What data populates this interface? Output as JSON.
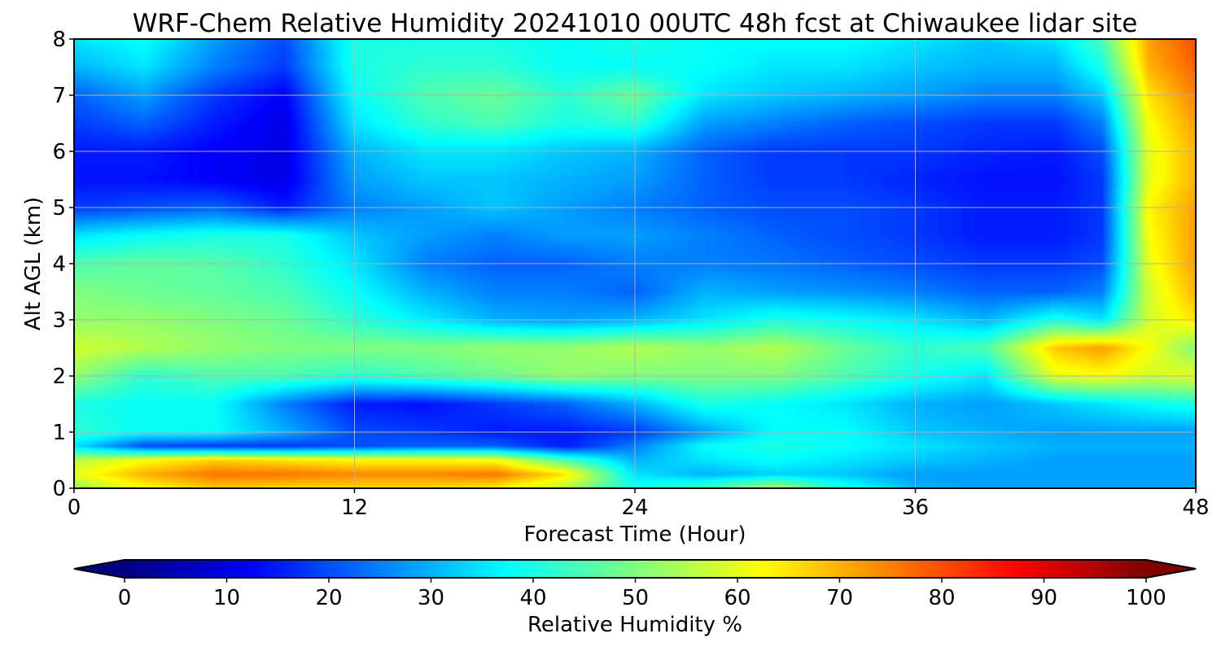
{
  "chart_data": {
    "type": "heatmap",
    "title": "WRF-Chem Relative Humidity 20241010 00UTC 48h fcst at Chiwaukee lidar site",
    "xlabel": "Forecast Time (Hour)",
    "ylabel": "Alt AGL (km)",
    "xlim": [
      0,
      48
    ],
    "ylim": [
      0,
      8
    ],
    "xticks": [
      0,
      12,
      24,
      36,
      48
    ],
    "yticks": [
      0,
      1,
      2,
      3,
      4,
      5,
      6,
      7,
      8
    ],
    "grid": true,
    "colormap": "jet",
    "colorbar": {
      "label": "Relative Humidity %",
      "range": [
        0,
        100
      ],
      "ticks": [
        0,
        10,
        20,
        30,
        40,
        50,
        60,
        70,
        80,
        90,
        100
      ],
      "extend": "both",
      "orientation": "horizontal"
    },
    "x": [
      0,
      3,
      6,
      9,
      12,
      15,
      18,
      21,
      24,
      27,
      30,
      33,
      36,
      39,
      42,
      44,
      46,
      48
    ],
    "y": [
      0,
      0.25,
      0.5,
      0.75,
      1,
      1.5,
      2,
      2.5,
      3,
      3.5,
      4,
      4.5,
      5,
      5.5,
      6,
      6.5,
      7,
      7.5,
      8
    ],
    "z": [
      [
        52,
        62,
        68,
        66,
        66,
        66,
        64,
        55,
        40,
        45,
        55,
        40,
        30,
        28,
        28,
        28,
        28,
        28
      ],
      [
        60,
        70,
        76,
        76,
        74,
        74,
        76,
        65,
        35,
        30,
        33,
        32,
        28,
        28,
        28,
        28,
        28,
        28
      ],
      [
        55,
        62,
        67,
        65,
        63,
        63,
        62,
        45,
        30,
        35,
        38,
        35,
        32,
        30,
        28,
        28,
        28,
        28
      ],
      [
        35,
        20,
        18,
        18,
        20,
        22,
        22,
        15,
        25,
        38,
        40,
        38,
        35,
        32,
        30,
        30,
        30,
        30
      ],
      [
        42,
        38,
        38,
        30,
        20,
        18,
        15,
        15,
        18,
        28,
        38,
        38,
        32,
        30,
        28,
        28,
        28,
        28
      ],
      [
        40,
        38,
        38,
        25,
        15,
        14,
        18,
        22,
        30,
        40,
        38,
        35,
        30,
        28,
        32,
        35,
        38,
        40
      ],
      [
        52,
        42,
        45,
        45,
        42,
        45,
        48,
        52,
        50,
        50,
        50,
        45,
        40,
        35,
        60,
        62,
        58,
        60
      ],
      [
        58,
        55,
        52,
        50,
        50,
        50,
        52,
        52,
        55,
        52,
        55,
        48,
        42,
        45,
        68,
        72,
        62,
        50
      ],
      [
        52,
        52,
        50,
        48,
        42,
        36,
        30,
        28,
        30,
        35,
        40,
        38,
        35,
        30,
        40,
        35,
        58,
        65
      ],
      [
        50,
        48,
        47,
        45,
        38,
        30,
        25,
        25,
        22,
        30,
        28,
        27,
        25,
        22,
        22,
        25,
        58,
        70
      ],
      [
        45,
        47,
        46,
        42,
        35,
        25,
        22,
        22,
        25,
        25,
        24,
        22,
        20,
        18,
        18,
        20,
        60,
        72
      ],
      [
        35,
        38,
        40,
        40,
        32,
        28,
        25,
        28,
        28,
        25,
        22,
        20,
        18,
        15,
        15,
        18,
        62,
        72
      ],
      [
        18,
        20,
        22,
        15,
        25,
        28,
        32,
        28,
        25,
        22,
        20,
        20,
        18,
        15,
        15,
        18,
        63,
        72
      ],
      [
        14,
        14,
        12,
        10,
        28,
        32,
        32,
        30,
        28,
        22,
        18,
        18,
        16,
        14,
        14,
        18,
        60,
        70
      ],
      [
        15,
        15,
        12,
        10,
        30,
        35,
        35,
        32,
        30,
        22,
        18,
        18,
        18,
        16,
        15,
        20,
        60,
        70
      ],
      [
        18,
        22,
        15,
        10,
        35,
        42,
        45,
        40,
        42,
        28,
        25,
        22,
        20,
        18,
        18,
        25,
        62,
        72
      ],
      [
        22,
        28,
        18,
        12,
        38,
        45,
        48,
        42,
        48,
        35,
        32,
        30,
        28,
        25,
        25,
        32,
        65,
        75
      ],
      [
        30,
        35,
        25,
        18,
        40,
        42,
        42,
        38,
        38,
        38,
        35,
        35,
        32,
        30,
        30,
        40,
        70,
        78
      ],
      [
        35,
        38,
        28,
        20,
        40,
        40,
        40,
        38,
        40,
        38,
        38,
        38,
        35,
        32,
        35,
        45,
        72,
        80
      ]
    ]
  }
}
